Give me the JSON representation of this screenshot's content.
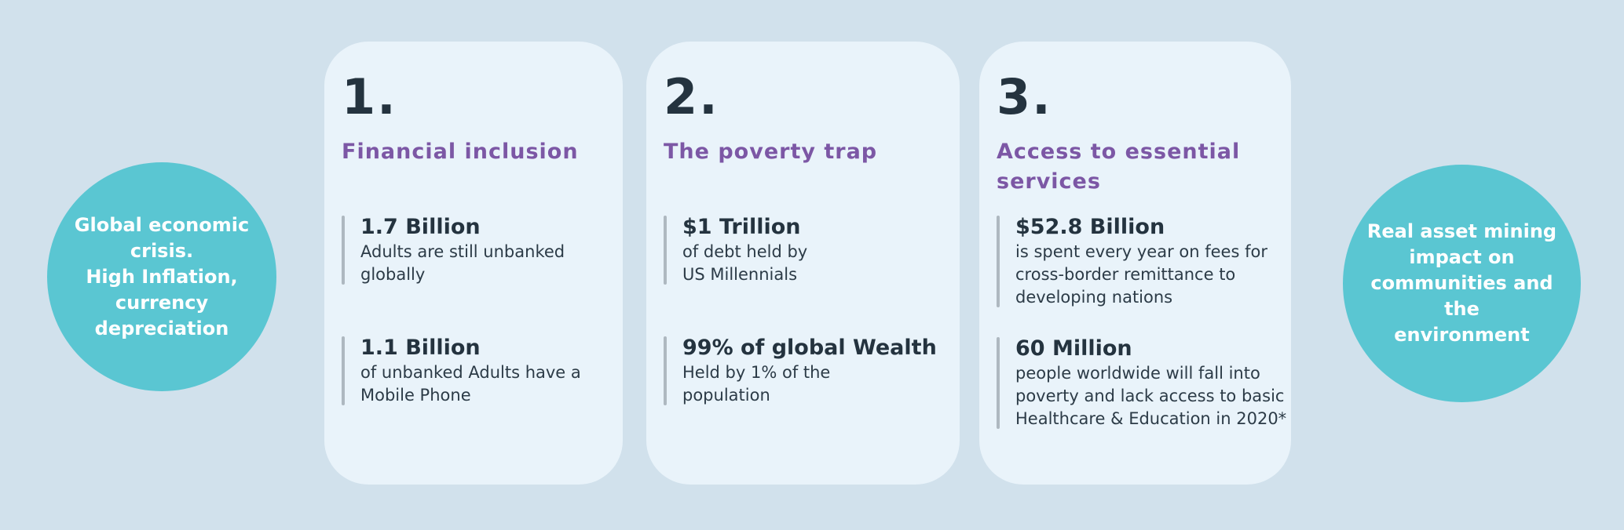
{
  "colors": {
    "bg": "#d1e1ec",
    "card-bg": "#e9f3fa",
    "teal": "#5ac6d2",
    "navy": "#24333f",
    "purple": "#7c57a5",
    "bar": "#aeb8c0",
    "desc": "#2c3b47"
  },
  "left_circle": {
    "text": "Global economic\ncrisis.\nHigh Inflation,\ncurrency\ndepreciation"
  },
  "right_circle": {
    "text": "Real asset  mining\nimpact on\ncommunities and the\nenvironment"
  },
  "cards": [
    {
      "number": "1.",
      "title": "Financial inclusion",
      "stats": [
        {
          "value": "1.7 Billion",
          "description": "Adults are still unbanked\nglobally"
        },
        {
          "value": "1.1 Billion",
          "description": "of unbanked Adults have a\nMobile Phone"
        }
      ]
    },
    {
      "number": "2.",
      "title": "The poverty trap",
      "stats": [
        {
          "value": "$1 Trillion",
          "description": "of debt held by\nUS Millennials"
        },
        {
          "value": "99% of global Wealth",
          "description": "Held by 1% of the\npopulation"
        }
      ]
    },
    {
      "number": "3.",
      "title": "Access to essential\nservices",
      "stats": [
        {
          "value": "$52.8 Billion",
          "description": "is spent every year on fees for\ncross-border remittance to\ndeveloping nations"
        },
        {
          "value": "60 Million",
          "description": "people worldwide will fall into\npoverty and lack access to basic\nHealthcare & Education in 2020*"
        }
      ]
    }
  ]
}
